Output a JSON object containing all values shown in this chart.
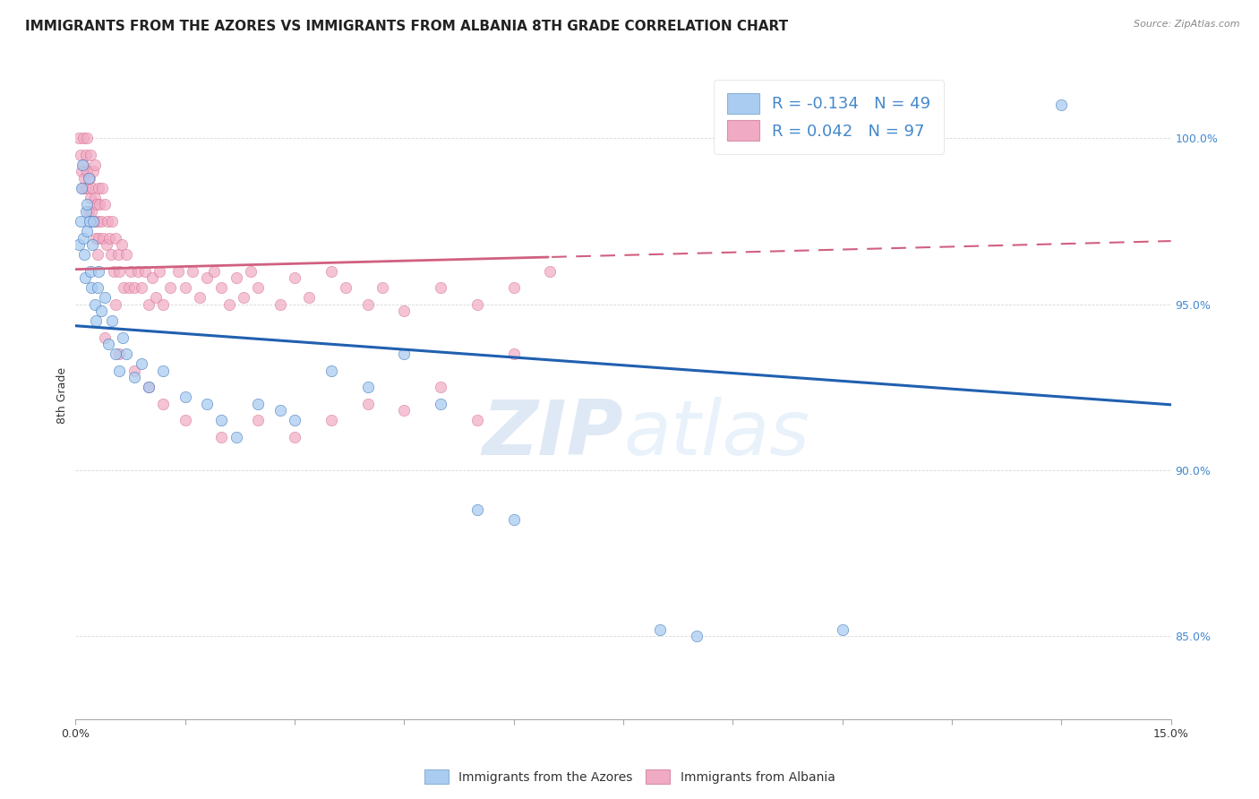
{
  "title": "IMMIGRANTS FROM THE AZORES VS IMMIGRANTS FROM ALBANIA 8TH GRADE CORRELATION CHART",
  "source": "Source: ZipAtlas.com",
  "ylabel": "8th Grade",
  "yticks": [
    85.0,
    90.0,
    95.0,
    100.0
  ],
  "ytick_labels": [
    "85.0%",
    "90.0%",
    "95.0%",
    "100.0%"
  ],
  "xlim": [
    0.0,
    15.0
  ],
  "ylim": [
    82.5,
    102.0
  ],
  "azores_color": "#aaccf0",
  "albania_color": "#f0aac4",
  "azores_R": -0.134,
  "azores_N": 49,
  "albania_R": 0.042,
  "albania_N": 97,
  "azores_line_color": "#2060b0",
  "albania_line_color": "#d06080",
  "watermark_zip": "ZIP",
  "watermark_atlas": "atlas",
  "legend_label_azores": "Immigrants from the Azores",
  "legend_label_albania": "Immigrants from Albania",
  "azores_points": [
    [
      0.05,
      96.8
    ],
    [
      0.07,
      97.5
    ],
    [
      0.08,
      98.5
    ],
    [
      0.09,
      99.2
    ],
    [
      0.1,
      97.0
    ],
    [
      0.12,
      96.5
    ],
    [
      0.13,
      95.8
    ],
    [
      0.14,
      97.8
    ],
    [
      0.15,
      98.0
    ],
    [
      0.16,
      97.2
    ],
    [
      0.18,
      98.8
    ],
    [
      0.19,
      97.5
    ],
    [
      0.2,
      96.0
    ],
    [
      0.22,
      95.5
    ],
    [
      0.23,
      96.8
    ],
    [
      0.24,
      97.5
    ],
    [
      0.26,
      95.0
    ],
    [
      0.28,
      94.5
    ],
    [
      0.3,
      95.5
    ],
    [
      0.32,
      96.0
    ],
    [
      0.35,
      94.8
    ],
    [
      0.4,
      95.2
    ],
    [
      0.45,
      93.8
    ],
    [
      0.5,
      94.5
    ],
    [
      0.55,
      93.5
    ],
    [
      0.6,
      93.0
    ],
    [
      0.65,
      94.0
    ],
    [
      0.7,
      93.5
    ],
    [
      0.8,
      92.8
    ],
    [
      0.9,
      93.2
    ],
    [
      1.0,
      92.5
    ],
    [
      1.2,
      93.0
    ],
    [
      1.5,
      92.2
    ],
    [
      1.8,
      92.0
    ],
    [
      2.0,
      91.5
    ],
    [
      2.2,
      91.0
    ],
    [
      2.5,
      92.0
    ],
    [
      2.8,
      91.8
    ],
    [
      3.0,
      91.5
    ],
    [
      3.5,
      93.0
    ],
    [
      4.0,
      92.5
    ],
    [
      4.5,
      93.5
    ],
    [
      5.0,
      92.0
    ],
    [
      5.5,
      88.8
    ],
    [
      6.0,
      88.5
    ],
    [
      8.0,
      85.2
    ],
    [
      8.5,
      85.0
    ],
    [
      10.5,
      85.2
    ],
    [
      13.5,
      101.0
    ]
  ],
  "albania_points": [
    [
      0.05,
      100.0
    ],
    [
      0.07,
      99.5
    ],
    [
      0.08,
      99.0
    ],
    [
      0.09,
      98.5
    ],
    [
      0.1,
      100.0
    ],
    [
      0.11,
      99.2
    ],
    [
      0.12,
      98.8
    ],
    [
      0.13,
      98.5
    ],
    [
      0.14,
      99.5
    ],
    [
      0.15,
      100.0
    ],
    [
      0.16,
      99.0
    ],
    [
      0.17,
      98.5
    ],
    [
      0.18,
      97.8
    ],
    [
      0.19,
      98.8
    ],
    [
      0.2,
      99.5
    ],
    [
      0.21,
      98.2
    ],
    [
      0.22,
      97.8
    ],
    [
      0.23,
      98.5
    ],
    [
      0.24,
      99.0
    ],
    [
      0.25,
      97.5
    ],
    [
      0.26,
      98.2
    ],
    [
      0.27,
      99.2
    ],
    [
      0.28,
      97.0
    ],
    [
      0.29,
      98.0
    ],
    [
      0.3,
      97.5
    ],
    [
      0.31,
      98.5
    ],
    [
      0.32,
      97.0
    ],
    [
      0.33,
      98.0
    ],
    [
      0.35,
      97.5
    ],
    [
      0.36,
      98.5
    ],
    [
      0.38,
      97.0
    ],
    [
      0.4,
      98.0
    ],
    [
      0.42,
      96.8
    ],
    [
      0.44,
      97.5
    ],
    [
      0.46,
      97.0
    ],
    [
      0.48,
      96.5
    ],
    [
      0.5,
      97.5
    ],
    [
      0.52,
      96.0
    ],
    [
      0.55,
      97.0
    ],
    [
      0.58,
      96.5
    ],
    [
      0.6,
      96.0
    ],
    [
      0.63,
      96.8
    ],
    [
      0.66,
      95.5
    ],
    [
      0.7,
      96.5
    ],
    [
      0.73,
      95.5
    ],
    [
      0.76,
      96.0
    ],
    [
      0.8,
      95.5
    ],
    [
      0.85,
      96.0
    ],
    [
      0.9,
      95.5
    ],
    [
      0.95,
      96.0
    ],
    [
      1.0,
      95.0
    ],
    [
      1.05,
      95.8
    ],
    [
      1.1,
      95.2
    ],
    [
      1.15,
      96.0
    ],
    [
      1.2,
      95.0
    ],
    [
      1.3,
      95.5
    ],
    [
      1.4,
      96.0
    ],
    [
      1.5,
      95.5
    ],
    [
      1.6,
      96.0
    ],
    [
      1.7,
      95.2
    ],
    [
      1.8,
      95.8
    ],
    [
      1.9,
      96.0
    ],
    [
      2.0,
      95.5
    ],
    [
      2.1,
      95.0
    ],
    [
      2.2,
      95.8
    ],
    [
      2.3,
      95.2
    ],
    [
      2.4,
      96.0
    ],
    [
      2.5,
      95.5
    ],
    [
      2.8,
      95.0
    ],
    [
      3.0,
      95.8
    ],
    [
      3.2,
      95.2
    ],
    [
      3.5,
      96.0
    ],
    [
      3.7,
      95.5
    ],
    [
      4.0,
      95.0
    ],
    [
      4.2,
      95.5
    ],
    [
      4.5,
      94.8
    ],
    [
      5.0,
      95.5
    ],
    [
      5.5,
      95.0
    ],
    [
      6.0,
      95.5
    ],
    [
      6.5,
      96.0
    ],
    [
      0.4,
      94.0
    ],
    [
      0.6,
      93.5
    ],
    [
      0.8,
      93.0
    ],
    [
      1.0,
      92.5
    ],
    [
      1.2,
      92.0
    ],
    [
      1.5,
      91.5
    ],
    [
      2.0,
      91.0
    ],
    [
      2.5,
      91.5
    ],
    [
      3.0,
      91.0
    ],
    [
      3.5,
      91.5
    ],
    [
      4.0,
      92.0
    ],
    [
      4.5,
      91.8
    ],
    [
      5.0,
      92.5
    ],
    [
      5.5,
      91.5
    ],
    [
      6.0,
      93.5
    ],
    [
      0.3,
      96.5
    ],
    [
      0.55,
      95.0
    ]
  ],
  "background_color": "#ffffff",
  "grid_color": "#d8d8d8",
  "title_fontsize": 11,
  "axis_label_fontsize": 9,
  "tick_fontsize": 9,
  "tick_color": "#4488cc",
  "legend_fontsize": 13
}
